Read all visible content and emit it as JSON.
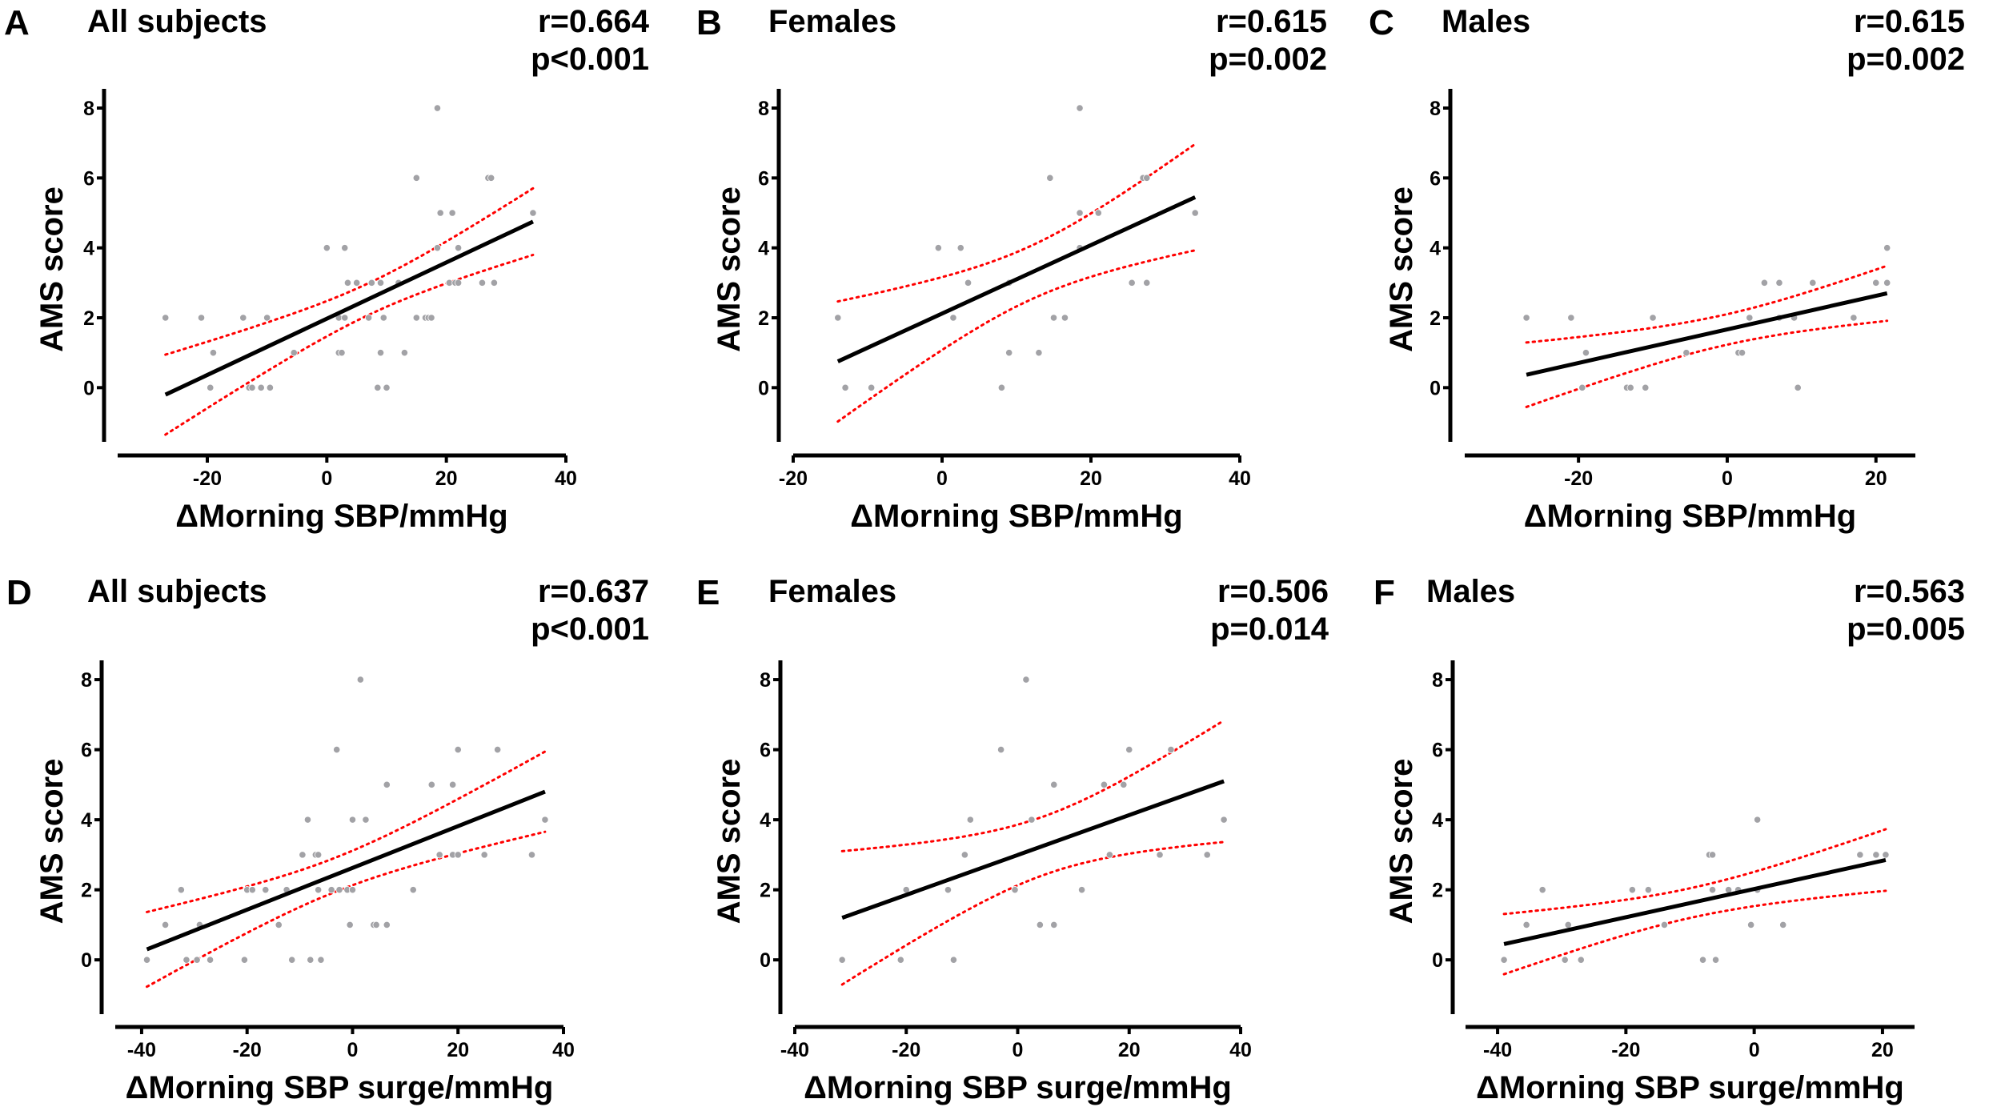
{
  "chart_data": [
    {
      "panel": "A",
      "type": "scatter",
      "title": "All subjects",
      "stats": [
        "r=0.664",
        "p<0.001"
      ],
      "xlabel": "ΔMorning SBP/mmHg",
      "ylabel": "AMS score",
      "xlim": [
        -35,
        40
      ],
      "ylim": [
        -1.55,
        8.55
      ],
      "xticks": [
        -20,
        0,
        20,
        40
      ],
      "yticks": [
        0,
        2,
        4,
        6,
        8
      ],
      "points": [
        [
          -27,
          2
        ],
        [
          -21,
          2
        ],
        [
          -14,
          2
        ],
        [
          -10,
          2
        ],
        [
          -19,
          1
        ],
        [
          -5.5,
          1
        ],
        [
          -19.5,
          0
        ],
        [
          -13,
          0
        ],
        [
          -12.5,
          0
        ],
        [
          -11,
          0
        ],
        [
          -9.5,
          0
        ],
        [
          0,
          4
        ],
        [
          3,
          4
        ],
        [
          3.5,
          3
        ],
        [
          5,
          3
        ],
        [
          7.5,
          3
        ],
        [
          9,
          3
        ],
        [
          12,
          3
        ],
        [
          2,
          2
        ],
        [
          3,
          2
        ],
        [
          7,
          2
        ],
        [
          9.5,
          2
        ],
        [
          15,
          2
        ],
        [
          16.5,
          2
        ],
        [
          17,
          2
        ],
        [
          17.5,
          2
        ],
        [
          2,
          1
        ],
        [
          2.5,
          1
        ],
        [
          9,
          1
        ],
        [
          13,
          1
        ],
        [
          8.5,
          0
        ],
        [
          10,
          0
        ],
        [
          18.5,
          8
        ],
        [
          15,
          6
        ],
        [
          27,
          6
        ],
        [
          27.5,
          6
        ],
        [
          19,
          5
        ],
        [
          21,
          5
        ],
        [
          34.5,
          5
        ],
        [
          18.5,
          4
        ],
        [
          22,
          4
        ],
        [
          20.5,
          3
        ],
        [
          21.5,
          3
        ],
        [
          22,
          3
        ],
        [
          26,
          3
        ],
        [
          28,
          3
        ]
      ],
      "fit": [
        [
          -27,
          -0.2
        ],
        [
          34.5,
          4.75
        ]
      ],
      "grid": false
    },
    {
      "panel": "B",
      "type": "scatter",
      "title": "Females",
      "stats": [
        "r=0.615",
        "p=0.002"
      ],
      "xlabel": "ΔMorning SBP/mmHg",
      "ylabel": "AMS score",
      "xlim": [
        -20,
        40
      ],
      "ylim": [
        -1.55,
        8.55
      ],
      "xticks": [
        -20,
        0,
        20,
        40
      ],
      "yticks": [
        0,
        2,
        4,
        6,
        8
      ],
      "points": [
        [
          -14,
          2
        ],
        [
          -13,
          0
        ],
        [
          -9.5,
          0
        ],
        [
          -0.5,
          4
        ],
        [
          2.5,
          4
        ],
        [
          3.5,
          3
        ],
        [
          1.5,
          2
        ],
        [
          9,
          3
        ],
        [
          8,
          0
        ],
        [
          9,
          1
        ],
        [
          13,
          1
        ],
        [
          14.5,
          6
        ],
        [
          15,
          2
        ],
        [
          16.5,
          2
        ],
        [
          18.5,
          8
        ],
        [
          18.5,
          5
        ],
        [
          21,
          5
        ],
        [
          18.5,
          4
        ],
        [
          27,
          6
        ],
        [
          27.5,
          6
        ],
        [
          25.5,
          3
        ],
        [
          27.5,
          3
        ],
        [
          34,
          5
        ]
      ],
      "fit": [
        [
          -14,
          0.75
        ],
        [
          34,
          5.45
        ]
      ],
      "grid": false
    },
    {
      "panel": "C",
      "type": "scatter",
      "title": "Males",
      "stats": [
        "r=0.615",
        "p=0.002"
      ],
      "xlabel": "ΔMorning SBP/mmHg",
      "ylabel": "AMS score",
      "xlim": [
        -35.3,
        25.3
      ],
      "ylim": [
        -1.55,
        8.55
      ],
      "xticks": [
        -20,
        0,
        20
      ],
      "yticks": [
        0,
        2,
        4,
        6,
        8
      ],
      "points": [
        [
          -27,
          2
        ],
        [
          -21,
          2
        ],
        [
          -10,
          2
        ],
        [
          -19,
          1
        ],
        [
          -19.5,
          0
        ],
        [
          -13.5,
          0
        ],
        [
          -13,
          0
        ],
        [
          -11,
          0
        ],
        [
          -5.5,
          1
        ],
        [
          1.5,
          1
        ],
        [
          2,
          1
        ],
        [
          3,
          2
        ],
        [
          7,
          2
        ],
        [
          9,
          2
        ],
        [
          17,
          2
        ],
        [
          5,
          3
        ],
        [
          7,
          3
        ],
        [
          11.5,
          3
        ],
        [
          20,
          3
        ],
        [
          21.5,
          3
        ],
        [
          21.5,
          4
        ],
        [
          9.5,
          0
        ]
      ],
      "fit": [
        [
          -27,
          0.37
        ],
        [
          21.5,
          2.7
        ]
      ],
      "grid": false
    },
    {
      "panel": "D",
      "type": "scatter",
      "title": "All subjects",
      "stats": [
        "r=0.637",
        "p<0.001"
      ],
      "xlabel": "ΔMorning SBP surge/mmHg",
      "ylabel": "AMS score",
      "xlim": [
        -45,
        40
      ],
      "ylim": [
        -1.55,
        8.55
      ],
      "xticks": [
        -40,
        -20,
        0,
        20,
        40
      ],
      "yticks": [
        0,
        2,
        4,
        6,
        8
      ],
      "points": [
        [
          -39,
          0
        ],
        [
          -31.5,
          0
        ],
        [
          -29.5,
          0
        ],
        [
          -27,
          0
        ],
        [
          -20.5,
          0
        ],
        [
          -11.5,
          0
        ],
        [
          -8,
          0
        ],
        [
          -6,
          0
        ],
        [
          -35.5,
          1
        ],
        [
          -29,
          1
        ],
        [
          -14,
          1
        ],
        [
          -0.5,
          1
        ],
        [
          4,
          1
        ],
        [
          4.5,
          1
        ],
        [
          6.5,
          1
        ],
        [
          -32.5,
          2
        ],
        [
          -20,
          2
        ],
        [
          -19,
          2
        ],
        [
          -16.5,
          2
        ],
        [
          -12.5,
          2
        ],
        [
          -6.5,
          2
        ],
        [
          -4,
          2
        ],
        [
          -2.5,
          2
        ],
        [
          -1,
          2
        ],
        [
          0,
          2
        ],
        [
          11.5,
          2
        ],
        [
          -9.5,
          3
        ],
        [
          -7,
          3
        ],
        [
          -6.5,
          3
        ],
        [
          16.5,
          3
        ],
        [
          19,
          3
        ],
        [
          20,
          3
        ],
        [
          25,
          3
        ],
        [
          34,
          3
        ],
        [
          -8.5,
          4
        ],
        [
          0,
          4
        ],
        [
          2.5,
          4
        ],
        [
          36.5,
          4
        ],
        [
          6.5,
          5
        ],
        [
          15,
          5
        ],
        [
          19,
          5
        ],
        [
          -3,
          6
        ],
        [
          20,
          6
        ],
        [
          27.5,
          6
        ],
        [
          1.5,
          8
        ]
      ],
      "fit": [
        [
          -39,
          0.3
        ],
        [
          36.5,
          4.8
        ]
      ],
      "grid": false
    },
    {
      "panel": "E",
      "type": "scatter",
      "title": "Females",
      "stats": [
        "r=0.506",
        "p=0.014"
      ],
      "xlabel": "ΔMorning SBP surge/mmHg",
      "ylabel": "AMS score",
      "xlim": [
        -40,
        40
      ],
      "ylim": [
        -1.55,
        8.55
      ],
      "xticks": [
        -40,
        -20,
        0,
        20,
        40
      ],
      "yticks": [
        0,
        2,
        4,
        6,
        8
      ],
      "points": [
        [
          -31.5,
          0
        ],
        [
          -21,
          0
        ],
        [
          -11.5,
          0
        ],
        [
          4,
          1
        ],
        [
          6.5,
          1
        ],
        [
          -20,
          2
        ],
        [
          -12.5,
          2
        ],
        [
          -0.5,
          2
        ],
        [
          11.5,
          2
        ],
        [
          -9.5,
          3
        ],
        [
          16.5,
          3
        ],
        [
          25.5,
          3
        ],
        [
          34,
          3
        ],
        [
          -8.5,
          4
        ],
        [
          2.5,
          4
        ],
        [
          37,
          4
        ],
        [
          6.5,
          5
        ],
        [
          15.5,
          5
        ],
        [
          19,
          5
        ],
        [
          -3,
          6
        ],
        [
          20,
          6
        ],
        [
          27.5,
          6
        ],
        [
          1.5,
          8
        ]
      ],
      "fit": [
        [
          -31.5,
          1.2
        ],
        [
          37,
          5.1
        ]
      ],
      "grid": false
    },
    {
      "panel": "F",
      "type": "scatter",
      "title": "Males",
      "stats": [
        "r=0.563",
        "p=0.005"
      ],
      "xlabel": "ΔMorning SBP surge/mmHg",
      "ylabel": "AMS score",
      "xlim": [
        -45,
        25
      ],
      "ylim": [
        -1.55,
        8.55
      ],
      "xticks": [
        -40,
        -20,
        0,
        20
      ],
      "yticks": [
        0,
        2,
        4,
        6,
        8
      ],
      "points": [
        [
          -39,
          0
        ],
        [
          -29.5,
          0
        ],
        [
          -27,
          0
        ],
        [
          -8,
          0
        ],
        [
          -6,
          0
        ],
        [
          -35.5,
          1
        ],
        [
          -29,
          1
        ],
        [
          -14,
          1
        ],
        [
          -0.5,
          1
        ],
        [
          4.5,
          1
        ],
        [
          -33,
          2
        ],
        [
          -19,
          2
        ],
        [
          -16.5,
          2
        ],
        [
          -6.5,
          2
        ],
        [
          -4,
          2
        ],
        [
          -2.5,
          2
        ],
        [
          0.5,
          2
        ],
        [
          -7,
          3
        ],
        [
          -6.5,
          3
        ],
        [
          16.5,
          3
        ],
        [
          19,
          3
        ],
        [
          20.5,
          3
        ],
        [
          0.5,
          4
        ]
      ],
      "fit": [
        [
          -39,
          0.45
        ],
        [
          20.5,
          2.85
        ]
      ],
      "grid": false
    }
  ],
  "colors": {
    "points": "#a2a2a6",
    "fit_line": "#000000",
    "confidence_band": "#ff0000",
    "axes": "#000000"
  },
  "legend": "none"
}
